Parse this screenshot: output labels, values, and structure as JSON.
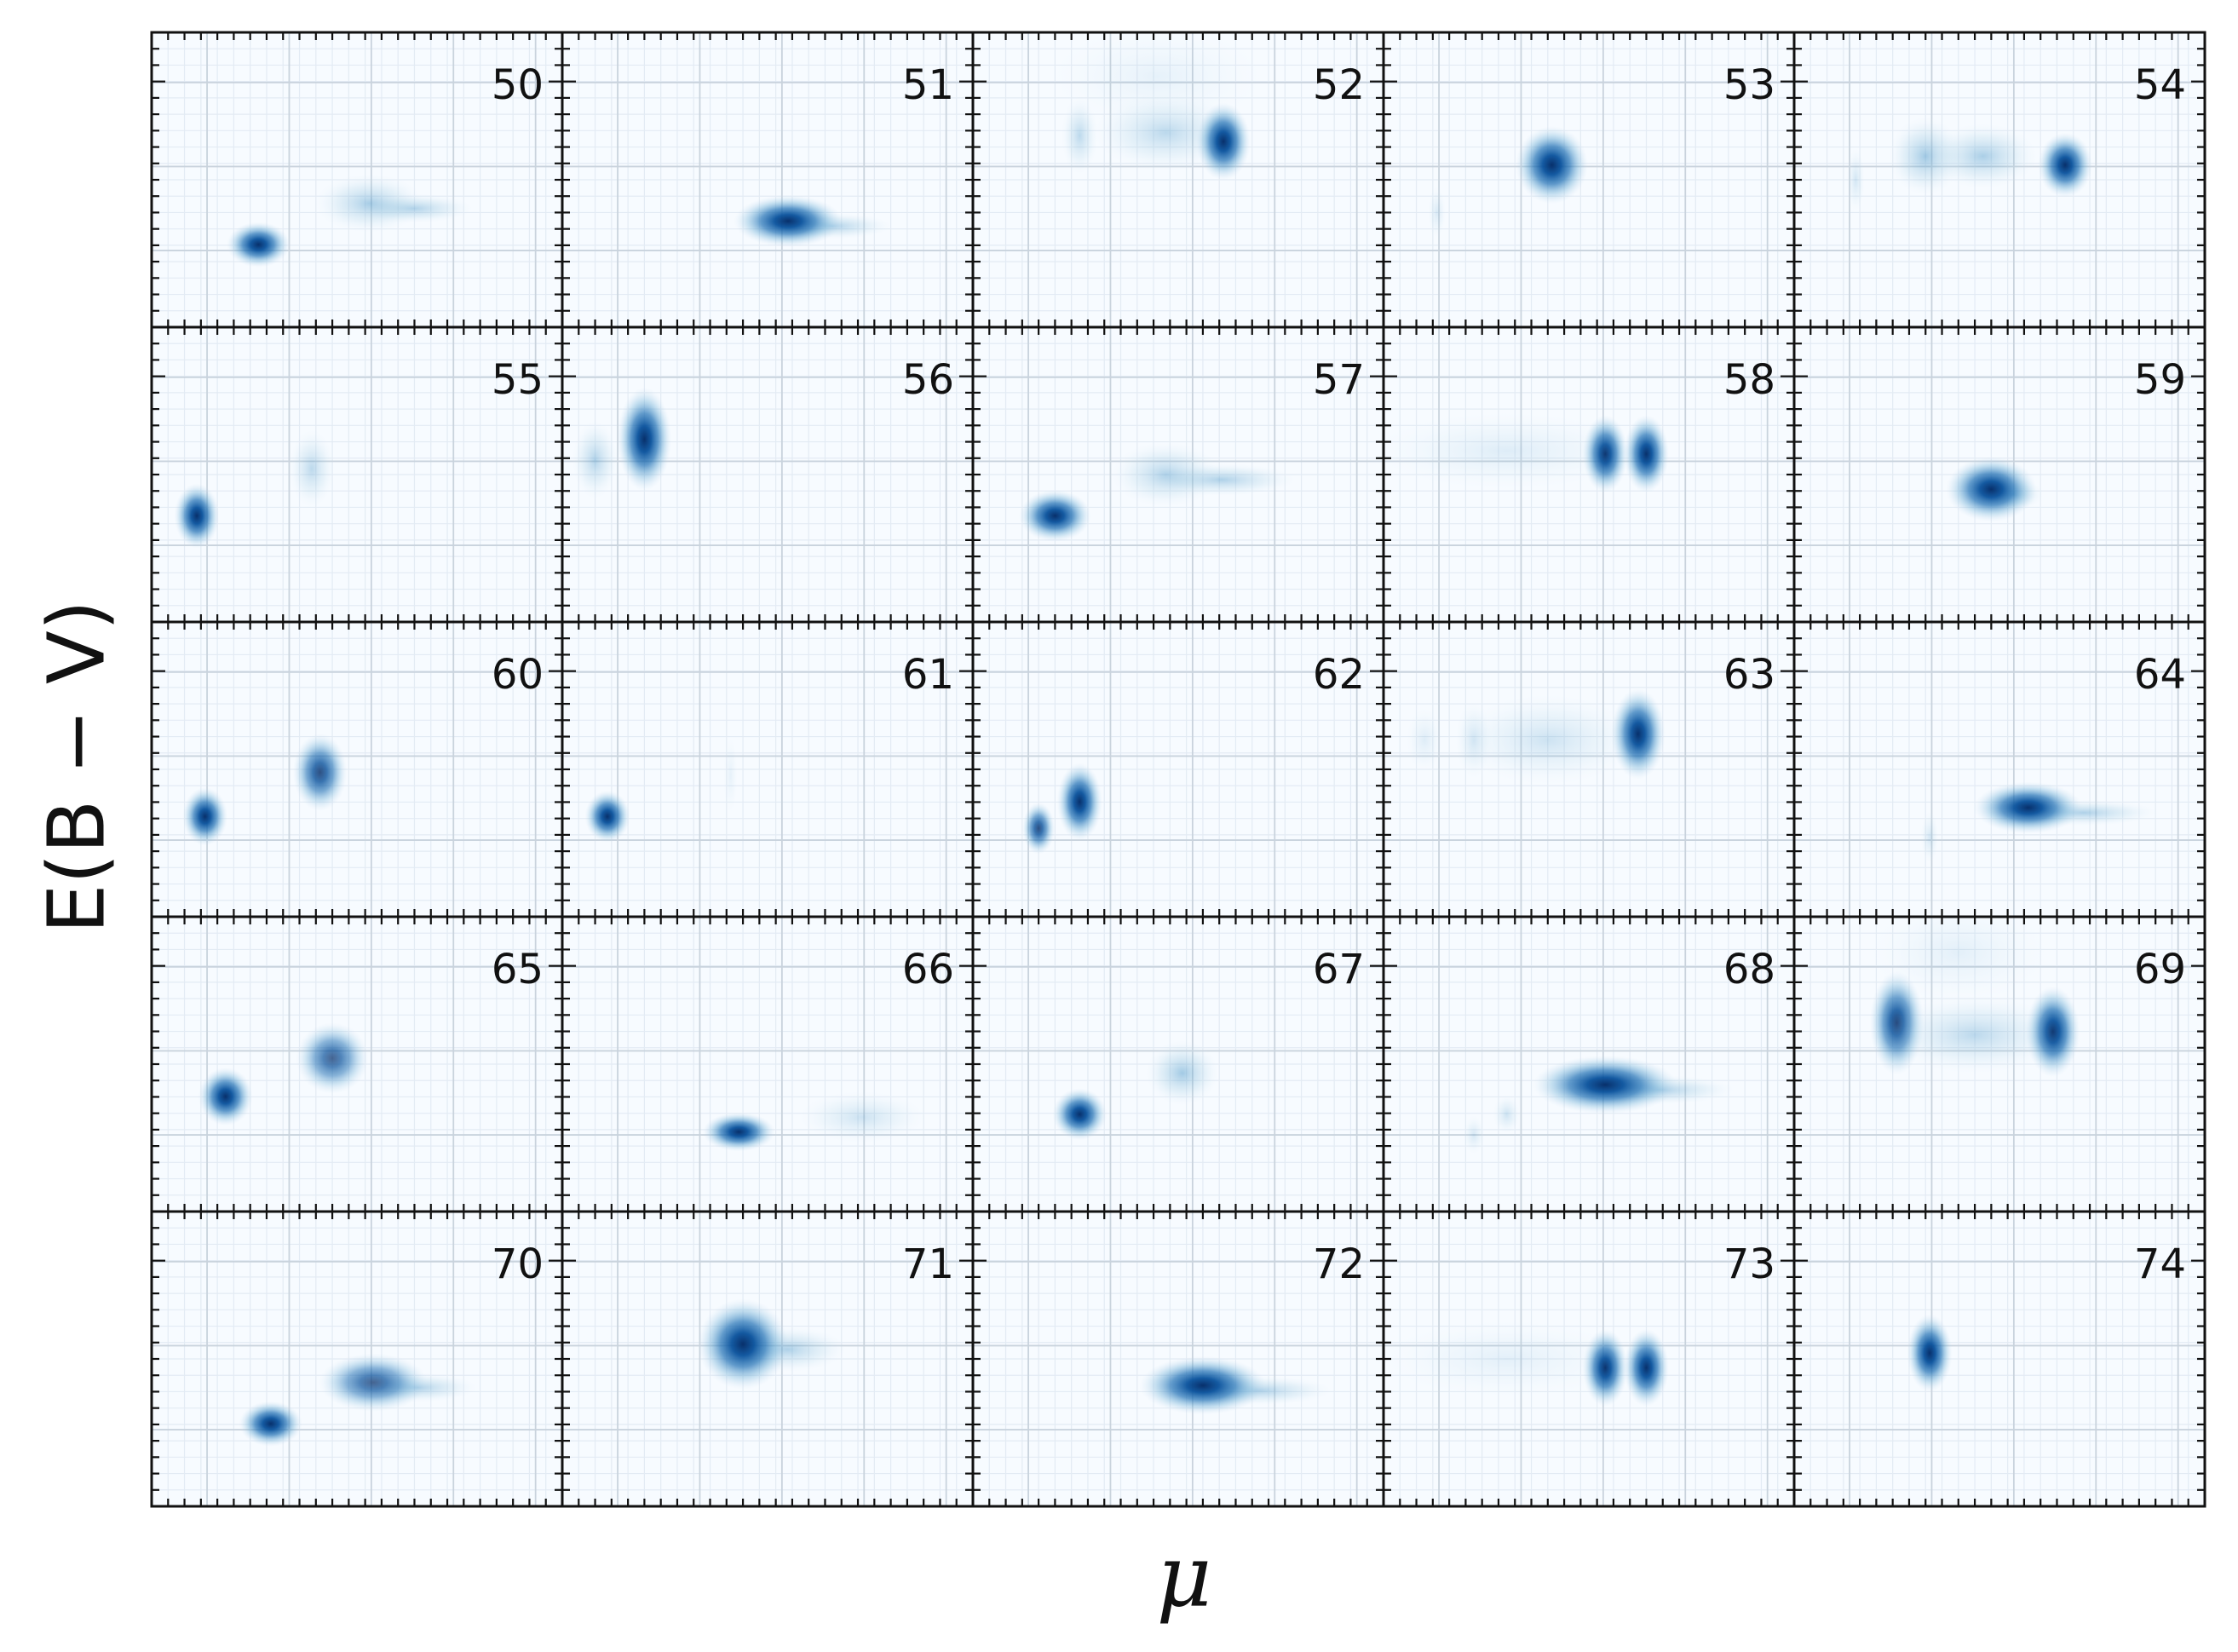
{
  "chart_data": {
    "type": "heatmap",
    "title": "",
    "xlabel": "μ",
    "ylabel": "E(B − V)",
    "xlim": [
      0,
      1
    ],
    "ylim": [
      0,
      1
    ],
    "grid": true,
    "colormap": "Blues",
    "colors": {
      "low": "#f7fbff",
      "mid": "#6baed6",
      "high": "#08306b"
    },
    "panels": [
      {
        "label": "50",
        "blobs": [
          {
            "x": 0.26,
            "y": 0.28,
            "sx": 0.035,
            "sy": 0.035,
            "w": 1.0
          },
          {
            "x": 0.53,
            "y": 0.42,
            "sx": 0.06,
            "sy": 0.045,
            "w": 0.45,
            "tail": 0.12
          }
        ]
      },
      {
        "label": "51",
        "blobs": [
          {
            "x": 0.55,
            "y": 0.36,
            "sx": 0.06,
            "sy": 0.04,
            "w": 0.95,
            "tail": 0.12
          }
        ]
      },
      {
        "label": "52",
        "blobs": [
          {
            "x": 0.26,
            "y": 0.65,
            "sx": 0.02,
            "sy": 0.06,
            "w": 0.35
          },
          {
            "x": 0.47,
            "y": 0.66,
            "sx": 0.08,
            "sy": 0.06,
            "w": 0.35
          },
          {
            "x": 0.61,
            "y": 0.63,
            "sx": 0.03,
            "sy": 0.06,
            "w": 1.0
          },
          {
            "x": 0.45,
            "y": 0.85,
            "sx": 0.12,
            "sy": 0.08,
            "w": 0.1
          }
        ]
      },
      {
        "label": "53",
        "blobs": [
          {
            "x": 0.41,
            "y": 0.55,
            "sx": 0.04,
            "sy": 0.06,
            "w": 1.0
          },
          {
            "x": 0.13,
            "y": 0.39,
            "sx": 0.01,
            "sy": 0.04,
            "w": 0.18
          }
        ]
      },
      {
        "label": "54",
        "blobs": [
          {
            "x": 0.15,
            "y": 0.5,
            "sx": 0.01,
            "sy": 0.05,
            "w": 0.22
          },
          {
            "x": 0.32,
            "y": 0.58,
            "sx": 0.04,
            "sy": 0.06,
            "w": 0.5
          },
          {
            "x": 0.46,
            "y": 0.58,
            "sx": 0.06,
            "sy": 0.05,
            "w": 0.45
          },
          {
            "x": 0.66,
            "y": 0.55,
            "sx": 0.03,
            "sy": 0.05,
            "w": 0.95
          }
        ]
      },
      {
        "label": "55",
        "blobs": [
          {
            "x": 0.11,
            "y": 0.36,
            "sx": 0.025,
            "sy": 0.05,
            "w": 1.0
          },
          {
            "x": 0.39,
            "y": 0.52,
            "sx": 0.025,
            "sy": 0.06,
            "w": 0.35
          }
        ]
      },
      {
        "label": "56",
        "blobs": [
          {
            "x": 0.2,
            "y": 0.62,
            "sx": 0.03,
            "sy": 0.08,
            "w": 1.0
          },
          {
            "x": 0.08,
            "y": 0.55,
            "sx": 0.025,
            "sy": 0.06,
            "w": 0.4
          }
        ]
      },
      {
        "label": "57",
        "blobs": [
          {
            "x": 0.2,
            "y": 0.36,
            "sx": 0.04,
            "sy": 0.04,
            "w": 1.0
          },
          {
            "x": 0.47,
            "y": 0.5,
            "sx": 0.06,
            "sy": 0.05,
            "w": 0.4,
            "tail": 0.15
          }
        ]
      },
      {
        "label": "58",
        "blobs": [
          {
            "x": 0.54,
            "y": 0.57,
            "sx": 0.025,
            "sy": 0.06,
            "w": 1.0
          },
          {
            "x": 0.64,
            "y": 0.57,
            "sx": 0.025,
            "sy": 0.06,
            "w": 0.95
          },
          {
            "x": 0.3,
            "y": 0.58,
            "sx": 0.15,
            "sy": 0.06,
            "w": 0.15
          }
        ]
      },
      {
        "label": "59",
        "blobs": [
          {
            "x": 0.48,
            "y": 0.45,
            "sx": 0.05,
            "sy": 0.05,
            "w": 1.0,
            "tail": 0.06
          }
        ]
      },
      {
        "label": "60",
        "blobs": [
          {
            "x": 0.13,
            "y": 0.34,
            "sx": 0.025,
            "sy": 0.045,
            "w": 0.95
          },
          {
            "x": 0.41,
            "y": 0.49,
            "sx": 0.03,
            "sy": 0.06,
            "w": 0.8
          }
        ]
      },
      {
        "label": "61",
        "blobs": [
          {
            "x": 0.11,
            "y": 0.34,
            "sx": 0.025,
            "sy": 0.04,
            "w": 1.0
          },
          {
            "x": 0.41,
            "y": 0.48,
            "sx": 0.008,
            "sy": 0.06,
            "w": 0.1
          }
        ]
      },
      {
        "label": "62",
        "blobs": [
          {
            "x": 0.16,
            "y": 0.3,
            "sx": 0.018,
            "sy": 0.04,
            "w": 0.8
          },
          {
            "x": 0.26,
            "y": 0.39,
            "sx": 0.025,
            "sy": 0.06,
            "w": 0.95
          }
        ]
      },
      {
        "label": "63",
        "blobs": [
          {
            "x": 0.62,
            "y": 0.62,
            "sx": 0.03,
            "sy": 0.07,
            "w": 1.0
          },
          {
            "x": 0.22,
            "y": 0.6,
            "sx": 0.02,
            "sy": 0.06,
            "w": 0.22
          },
          {
            "x": 0.4,
            "y": 0.6,
            "sx": 0.1,
            "sy": 0.07,
            "w": 0.25
          },
          {
            "x": 0.1,
            "y": 0.6,
            "sx": 0.02,
            "sy": 0.05,
            "w": 0.15
          }
        ]
      },
      {
        "label": "64",
        "blobs": [
          {
            "x": 0.57,
            "y": 0.37,
            "sx": 0.06,
            "sy": 0.04,
            "w": 1.0,
            "tail": 0.15
          },
          {
            "x": 0.33,
            "y": 0.27,
            "sx": 0.01,
            "sy": 0.04,
            "w": 0.2
          }
        ]
      },
      {
        "label": "65",
        "blobs": [
          {
            "x": 0.18,
            "y": 0.39,
            "sx": 0.03,
            "sy": 0.045,
            "w": 1.0
          },
          {
            "x": 0.44,
            "y": 0.52,
            "sx": 0.04,
            "sy": 0.055,
            "w": 0.7
          }
        ]
      },
      {
        "label": "66",
        "blobs": [
          {
            "x": 0.43,
            "y": 0.27,
            "sx": 0.04,
            "sy": 0.03,
            "w": 1.0
          },
          {
            "x": 0.73,
            "y": 0.32,
            "sx": 0.07,
            "sy": 0.04,
            "w": 0.25
          }
        ]
      },
      {
        "label": "67",
        "blobs": [
          {
            "x": 0.26,
            "y": 0.33,
            "sx": 0.03,
            "sy": 0.04,
            "w": 1.0
          },
          {
            "x": 0.51,
            "y": 0.47,
            "sx": 0.04,
            "sy": 0.05,
            "w": 0.5
          }
        ]
      },
      {
        "label": "68",
        "blobs": [
          {
            "x": 0.54,
            "y": 0.43,
            "sx": 0.08,
            "sy": 0.045,
            "w": 1.0,
            "tail": 0.15
          },
          {
            "x": 0.3,
            "y": 0.33,
            "sx": 0.015,
            "sy": 0.03,
            "w": 0.25
          },
          {
            "x": 0.22,
            "y": 0.26,
            "sx": 0.012,
            "sy": 0.03,
            "w": 0.2
          }
        ]
      },
      {
        "label": "69",
        "blobs": [
          {
            "x": 0.25,
            "y": 0.64,
            "sx": 0.03,
            "sy": 0.08,
            "w": 0.85
          },
          {
            "x": 0.63,
            "y": 0.61,
            "sx": 0.03,
            "sy": 0.07,
            "w": 1.0
          },
          {
            "x": 0.44,
            "y": 0.6,
            "sx": 0.1,
            "sy": 0.06,
            "w": 0.35
          },
          {
            "x": 0.4,
            "y": 0.88,
            "sx": 0.1,
            "sy": 0.08,
            "w": 0.12
          }
        ]
      },
      {
        "label": "70",
        "blobs": [
          {
            "x": 0.29,
            "y": 0.28,
            "sx": 0.035,
            "sy": 0.035,
            "w": 1.0
          },
          {
            "x": 0.54,
            "y": 0.42,
            "sx": 0.06,
            "sy": 0.045,
            "w": 0.7,
            "tail": 0.12
          }
        ]
      },
      {
        "label": "71",
        "blobs": [
          {
            "x": 0.44,
            "y": 0.55,
            "sx": 0.05,
            "sy": 0.07,
            "w": 1.0,
            "tail": 0.12
          }
        ]
      },
      {
        "label": "72",
        "blobs": [
          {
            "x": 0.56,
            "y": 0.41,
            "sx": 0.07,
            "sy": 0.045,
            "w": 1.0,
            "tail": 0.15
          }
        ]
      },
      {
        "label": "73",
        "blobs": [
          {
            "x": 0.54,
            "y": 0.47,
            "sx": 0.025,
            "sy": 0.06,
            "w": 1.0
          },
          {
            "x": 0.64,
            "y": 0.47,
            "sx": 0.025,
            "sy": 0.06,
            "w": 0.95
          },
          {
            "x": 0.3,
            "y": 0.5,
            "sx": 0.14,
            "sy": 0.06,
            "w": 0.12
          }
        ]
      },
      {
        "label": "74",
        "blobs": [
          {
            "x": 0.33,
            "y": 0.52,
            "sx": 0.025,
            "sy": 0.06,
            "w": 1.0
          }
        ]
      }
    ]
  }
}
